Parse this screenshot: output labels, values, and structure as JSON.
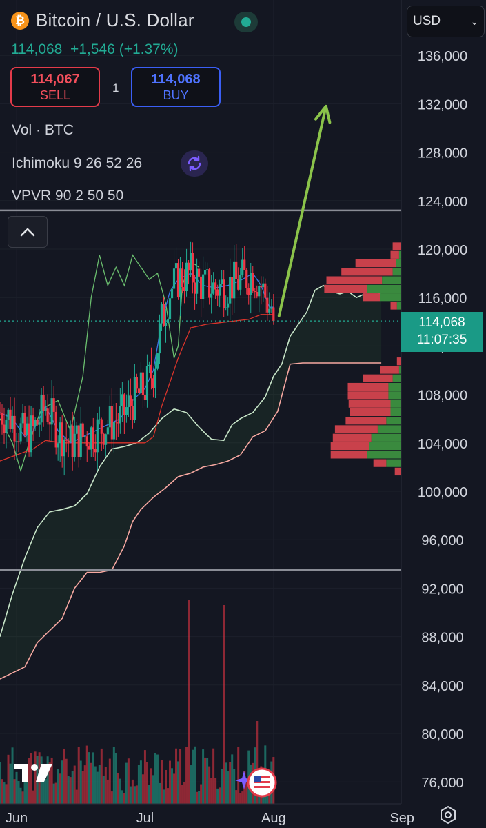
{
  "header": {
    "symbol_icon": "bitcoin-icon",
    "title": "Bitcoin / U.S. Dollar",
    "market_status": "open",
    "last_price": "114,068",
    "change": "+1,546",
    "change_pct": "(+1.37%)"
  },
  "trade": {
    "sell_price": "114,067",
    "sell_label": "SELL",
    "spread": "1",
    "buy_price": "114,068",
    "buy_label": "BUY"
  },
  "indicators": {
    "volume": "Vol · BTC",
    "ichimoku": "Ichimoku 9 26 52 26",
    "vpvr": "VPVR 90 2 50 50"
  },
  "currency": {
    "selected": "USD"
  },
  "price_tag": {
    "price": "114,068",
    "countdown": "11:07:35"
  },
  "colors": {
    "up": "#22ab94",
    "down": "#f23645",
    "accent_arrow": "#8bc34a",
    "background": "#141722"
  },
  "chart_data": {
    "type": "candlestick",
    "y_axis": {
      "ticks": [
        "136,000",
        "132,000",
        "128,000",
        "124,000",
        "120,000",
        "116,000",
        "112,000",
        "108,000",
        "104,000",
        "100,000",
        "96,000",
        "92,000",
        "88,000",
        "84,000",
        "80,000",
        "76,000"
      ],
      "range": [
        74500,
        138000
      ]
    },
    "x_axis": {
      "ticks": [
        "Jun",
        "Jul",
        "Aug",
        "Sep"
      ],
      "range_days": [
        "2025-05-28",
        "2025-09-07"
      ],
      "tick_days": [
        4,
        35,
        66,
        97
      ]
    },
    "last_price": 114068,
    "horizontal_lines": [
      123200,
      93500
    ],
    "projection_arrow": {
      "from": [
        66,
        114500
      ],
      "to": [
        72,
        131800
      ]
    },
    "ichimoku": {
      "conversion": [
        [
          0,
          106500
        ],
        [
          3,
          106000
        ],
        [
          6,
          104500
        ],
        [
          8,
          105000
        ],
        [
          11,
          107000
        ],
        [
          14,
          105000
        ],
        [
          17,
          104000
        ],
        [
          20,
          104500
        ],
        [
          23,
          105000
        ],
        [
          26,
          105500
        ],
        [
          29,
          106000
        ],
        [
          32,
          107500
        ],
        [
          35,
          108500
        ],
        [
          37,
          110000
        ],
        [
          39,
          114000
        ],
        [
          41,
          116500
        ],
        [
          43,
          117500
        ],
        [
          46,
          118000
        ],
        [
          49,
          117000
        ],
        [
          52,
          116800
        ],
        [
          55,
          117000
        ],
        [
          58,
          117400
        ],
        [
          61,
          118000
        ],
        [
          63,
          117000
        ],
        [
          65,
          115200
        ],
        [
          66,
          115200
        ]
      ],
      "base": [
        [
          0,
          102500
        ],
        [
          4,
          103000
        ],
        [
          8,
          103500
        ],
        [
          11,
          104200
        ],
        [
          15,
          104000
        ],
        [
          20,
          104000
        ],
        [
          25,
          104000
        ],
        [
          30,
          104000
        ],
        [
          35,
          104000
        ],
        [
          37,
          104500
        ],
        [
          39,
          107000
        ],
        [
          41,
          109000
        ],
        [
          43,
          111000
        ],
        [
          46,
          113500
        ],
        [
          50,
          113800
        ],
        [
          55,
          114000
        ],
        [
          60,
          114200
        ],
        [
          63,
          114600
        ],
        [
          66,
          114600
        ]
      ],
      "lagging": [
        [
          0,
          106000
        ],
        [
          3,
          104000
        ],
        [
          5,
          101700
        ],
        [
          7,
          104000
        ],
        [
          10,
          106800
        ],
        [
          14,
          107500
        ],
        [
          17,
          105000
        ],
        [
          20,
          109500
        ],
        [
          22,
          116000
        ],
        [
          24,
          119500
        ],
        [
          26,
          117000
        ],
        [
          28,
          118500
        ],
        [
          30,
          117000
        ],
        [
          32,
          119500
        ],
        [
          34,
          118500
        ],
        [
          36,
          117500
        ],
        [
          38,
          118000
        ],
        [
          40,
          115500
        ],
        [
          42,
          111000
        ],
        [
          43,
          112000
        ],
        [
          44,
          117000
        ],
        [
          46,
          119000
        ],
        [
          48,
          118500
        ]
      ],
      "span_a": [
        [
          0,
          88000
        ],
        [
          3,
          91500
        ],
        [
          6,
          94500
        ],
        [
          9,
          97000
        ],
        [
          12,
          98300
        ],
        [
          15,
          98500
        ],
        [
          18,
          98800
        ],
        [
          21,
          99800
        ],
        [
          24,
          102000
        ],
        [
          27,
          103500
        ],
        [
          30,
          103700
        ],
        [
          33,
          104000
        ],
        [
          36,
          104800
        ],
        [
          39,
          106000
        ],
        [
          42,
          106800
        ],
        [
          45,
          106500
        ],
        [
          48,
          105300
        ],
        [
          51,
          104300
        ],
        [
          54,
          104200
        ],
        [
          56,
          105500
        ],
        [
          58,
          106000
        ],
        [
          61,
          106500
        ],
        [
          64,
          107800
        ],
        [
          66,
          109500
        ],
        [
          68,
          110500
        ],
        [
          70,
          112800
        ],
        [
          72,
          113800
        ],
        [
          74,
          114800
        ],
        [
          76,
          116600
        ],
        [
          78,
          117000
        ],
        [
          80,
          116500
        ],
        [
          82,
          116300
        ],
        [
          84,
          116500
        ],
        [
          86,
          116000
        ],
        [
          88,
          116300
        ],
        [
          90,
          115800
        ],
        [
          92,
          116500
        ]
      ],
      "span_b": [
        [
          0,
          84500
        ],
        [
          3,
          85000
        ],
        [
          6,
          85500
        ],
        [
          9,
          87500
        ],
        [
          12,
          88500
        ],
        [
          15,
          89500
        ],
        [
          18,
          92000
        ],
        [
          21,
          93300
        ],
        [
          24,
          93300
        ],
        [
          27,
          93500
        ],
        [
          30,
          95500
        ],
        [
          32,
          97500
        ],
        [
          34,
          98500
        ],
        [
          37,
          99500
        ],
        [
          40,
          100300
        ],
        [
          43,
          101200
        ],
        [
          46,
          101500
        ],
        [
          49,
          102000
        ],
        [
          52,
          102200
        ],
        [
          55,
          102500
        ],
        [
          58,
          103000
        ],
        [
          61,
          104500
        ],
        [
          64,
          105000
        ],
        [
          67,
          106600
        ],
        [
          70,
          110500
        ],
        [
          73,
          110600
        ],
        [
          80,
          110600
        ],
        [
          92,
          110600
        ]
      ]
    },
    "vpvr": {
      "price_step": 700,
      "rows": [
        {
          "price": 120200,
          "up": 0,
          "down": 20
        },
        {
          "price": 119500,
          "up": 5,
          "down": 20
        },
        {
          "price": 118800,
          "up": 12,
          "down": 95
        },
        {
          "price": 118100,
          "up": 20,
          "down": 120
        },
        {
          "price": 117400,
          "up": 45,
          "down": 130
        },
        {
          "price": 116700,
          "up": 80,
          "down": 100
        },
        {
          "price": 116000,
          "up": 50,
          "down": 40
        },
        {
          "price": 115300,
          "up": 10,
          "down": 15
        },
        {
          "price": 110700,
          "up": 0,
          "down": 10
        },
        {
          "price": 110000,
          "up": 5,
          "down": 45
        },
        {
          "price": 109300,
          "up": 20,
          "down": 70
        },
        {
          "price": 108600,
          "up": 30,
          "down": 95
        },
        {
          "price": 107900,
          "up": 30,
          "down": 95
        },
        {
          "price": 107200,
          "up": 25,
          "down": 98
        },
        {
          "price": 106500,
          "up": 25,
          "down": 95
        },
        {
          "price": 105800,
          "up": 35,
          "down": 95
        },
        {
          "price": 105100,
          "up": 55,
          "down": 100
        },
        {
          "price": 104400,
          "up": 70,
          "down": 90
        },
        {
          "price": 103700,
          "up": 75,
          "down": 90
        },
        {
          "price": 103000,
          "up": 80,
          "down": 85
        },
        {
          "price": 102300,
          "up": 35,
          "down": 30
        },
        {
          "price": 101600,
          "up": 0,
          "down": 15
        }
      ]
    }
  }
}
